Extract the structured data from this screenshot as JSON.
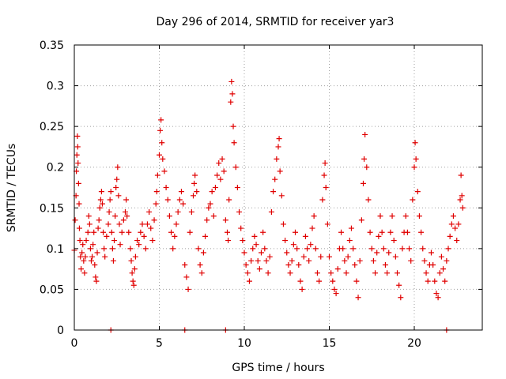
{
  "chart_data": {
    "type": "scatter",
    "title": "Day 296 of 2014, SRMTID for receiver yar3",
    "xlabel": "GPS time / hours",
    "ylabel": "SRMTID / TECUs",
    "xlim": [
      0,
      24
    ],
    "ylim": [
      0,
      0.35
    ],
    "x_ticks": [
      0,
      5,
      10,
      15,
      20
    ],
    "x_tick_labels": [
      "0",
      "5",
      "10",
      "15",
      "20"
    ],
    "y_ticks": [
      0,
      0.05,
      0.1,
      0.15,
      0.2,
      0.25,
      0.3,
      0.35
    ],
    "y_tick_labels": [
      "0",
      "0.05",
      "0.1",
      "0.15",
      "0.2",
      "0.25",
      "0.3",
      "0.35"
    ],
    "grid": true,
    "marker": "plus",
    "marker_color": "#e00000",
    "series": [
      {
        "name": "SRMTID",
        "points": [
          [
            0.0,
            0.098
          ],
          [
            0.05,
            0.135
          ],
          [
            0.1,
            0.165
          ],
          [
            0.12,
            0.195
          ],
          [
            0.15,
            0.215
          ],
          [
            0.18,
            0.238
          ],
          [
            0.2,
            0.225
          ],
          [
            0.22,
            0.205
          ],
          [
            0.25,
            0.18
          ],
          [
            0.28,
            0.155
          ],
          [
            0.3,
            0.125
          ],
          [
            0.33,
            0.11
          ],
          [
            0.36,
            0.09
          ],
          [
            0.4,
            0.075
          ],
          [
            0.45,
            0.095
          ],
          [
            0.5,
            0.105
          ],
          [
            0.55,
            0.085
          ],
          [
            0.6,
            0.07
          ],
          [
            0.65,
            0.09
          ],
          [
            0.7,
            0.11
          ],
          [
            0.8,
            0.12
          ],
          [
            0.85,
            0.14
          ],
          [
            0.9,
            0.13
          ],
          [
            0.95,
            0.1
          ],
          [
            1.0,
            0.085
          ],
          [
            1.05,
            0.09
          ],
          [
            1.1,
            0.105
          ],
          [
            1.15,
            0.12
          ],
          [
            1.2,
            0.08
          ],
          [
            1.25,
            0.065
          ],
          [
            1.3,
            0.06
          ],
          [
            1.35,
            0.095
          ],
          [
            1.4,
            0.125
          ],
          [
            1.45,
            0.135
          ],
          [
            1.5,
            0.15
          ],
          [
            1.55,
            0.16
          ],
          [
            1.6,
            0.17
          ],
          [
            1.65,
            0.155
          ],
          [
            1.7,
            0.12
          ],
          [
            1.75,
            0.1
          ],
          [
            1.8,
            0.09
          ],
          [
            1.9,
            0.115
          ],
          [
            2.0,
            0.13
          ],
          [
            2.05,
            0.145
          ],
          [
            2.1,
            0.16
          ],
          [
            2.15,
            0.17
          ],
          [
            2.2,
            0.12
          ],
          [
            2.25,
            0.1
          ],
          [
            2.3,
            0.085
          ],
          [
            2.35,
            0.11
          ],
          [
            2.4,
            0.14
          ],
          [
            2.45,
            0.175
          ],
          [
            2.5,
            0.185
          ],
          [
            2.55,
            0.2
          ],
          [
            2.6,
            0.165
          ],
          [
            2.65,
            0.13
          ],
          [
            2.7,
            0.105
          ],
          [
            2.8,
            0.12
          ],
          [
            2.9,
            0.135
          ],
          [
            3.0,
            0.145
          ],
          [
            3.05,
            0.16
          ],
          [
            3.1,
            0.14
          ],
          [
            3.2,
            0.12
          ],
          [
            3.3,
            0.1
          ],
          [
            3.35,
            0.085
          ],
          [
            3.4,
            0.07
          ],
          [
            3.45,
            0.06
          ],
          [
            3.5,
            0.055
          ],
          [
            3.55,
            0.075
          ],
          [
            3.6,
            0.09
          ],
          [
            3.7,
            0.11
          ],
          [
            3.8,
            0.105
          ],
          [
            3.9,
            0.12
          ],
          [
            4.0,
            0.13
          ],
          [
            4.1,
            0.115
          ],
          [
            4.2,
            0.1
          ],
          [
            4.3,
            0.13
          ],
          [
            4.4,
            0.145
          ],
          [
            4.5,
            0.125
          ],
          [
            4.6,
            0.11
          ],
          [
            4.7,
            0.135
          ],
          [
            4.8,
            0.155
          ],
          [
            4.85,
            0.17
          ],
          [
            4.9,
            0.19
          ],
          [
            5.0,
            0.215
          ],
          [
            5.05,
            0.245
          ],
          [
            5.1,
            0.258
          ],
          [
            5.15,
            0.23
          ],
          [
            5.2,
            0.21
          ],
          [
            5.3,
            0.195
          ],
          [
            5.4,
            0.175
          ],
          [
            5.5,
            0.16
          ],
          [
            5.6,
            0.14
          ],
          [
            5.7,
            0.12
          ],
          [
            5.8,
            0.1
          ],
          [
            5.9,
            0.115
          ],
          [
            6.0,
            0.13
          ],
          [
            6.1,
            0.145
          ],
          [
            6.2,
            0.16
          ],
          [
            6.3,
            0.17
          ],
          [
            6.4,
            0.155
          ],
          [
            6.5,
            0.08
          ],
          [
            6.6,
            0.065
          ],
          [
            6.7,
            0.05
          ],
          [
            6.8,
            0.12
          ],
          [
            6.9,
            0.145
          ],
          [
            7.0,
            0.165
          ],
          [
            7.05,
            0.18
          ],
          [
            7.1,
            0.19
          ],
          [
            7.2,
            0.17
          ],
          [
            7.3,
            0.1
          ],
          [
            7.4,
            0.08
          ],
          [
            7.5,
            0.07
          ],
          [
            7.6,
            0.095
          ],
          [
            7.7,
            0.115
          ],
          [
            7.8,
            0.135
          ],
          [
            7.9,
            0.15
          ],
          [
            8.0,
            0.155
          ],
          [
            8.1,
            0.17
          ],
          [
            8.2,
            0.14
          ],
          [
            8.3,
            0.175
          ],
          [
            8.4,
            0.19
          ],
          [
            8.5,
            0.205
          ],
          [
            8.6,
            0.185
          ],
          [
            8.7,
            0.21
          ],
          [
            8.8,
            0.195
          ],
          [
            8.9,
            0.135
          ],
          [
            9.0,
            0.12
          ],
          [
            9.05,
            0.11
          ],
          [
            9.1,
            0.16
          ],
          [
            9.2,
            0.28
          ],
          [
            9.25,
            0.305
          ],
          [
            9.3,
            0.29
          ],
          [
            9.35,
            0.25
          ],
          [
            9.4,
            0.23
          ],
          [
            9.5,
            0.2
          ],
          [
            9.6,
            0.175
          ],
          [
            9.7,
            0.145
          ],
          [
            9.8,
            0.125
          ],
          [
            9.9,
            0.11
          ],
          [
            10.0,
            0.095
          ],
          [
            10.1,
            0.08
          ],
          [
            10.2,
            0.07
          ],
          [
            10.3,
            0.06
          ],
          [
            10.4,
            0.085
          ],
          [
            10.5,
            0.1
          ],
          [
            10.6,
            0.115
          ],
          [
            10.7,
            0.105
          ],
          [
            10.8,
            0.085
          ],
          [
            10.9,
            0.075
          ],
          [
            11.0,
            0.095
          ],
          [
            11.1,
            0.12
          ],
          [
            11.2,
            0.1
          ],
          [
            11.3,
            0.085
          ],
          [
            11.4,
            0.07
          ],
          [
            11.5,
            0.09
          ],
          [
            11.6,
            0.145
          ],
          [
            11.7,
            0.17
          ],
          [
            11.8,
            0.185
          ],
          [
            11.9,
            0.21
          ],
          [
            12.0,
            0.225
          ],
          [
            12.05,
            0.235
          ],
          [
            12.1,
            0.195
          ],
          [
            12.2,
            0.165
          ],
          [
            12.3,
            0.13
          ],
          [
            12.4,
            0.11
          ],
          [
            12.5,
            0.095
          ],
          [
            12.6,
            0.08
          ],
          [
            12.7,
            0.07
          ],
          [
            12.8,
            0.085
          ],
          [
            12.9,
            0.105
          ],
          [
            13.0,
            0.12
          ],
          [
            13.1,
            0.1
          ],
          [
            13.2,
            0.08
          ],
          [
            13.3,
            0.06
          ],
          [
            13.4,
            0.05
          ],
          [
            13.5,
            0.09
          ],
          [
            13.6,
            0.115
          ],
          [
            13.7,
            0.1
          ],
          [
            13.8,
            0.085
          ],
          [
            13.9,
            0.105
          ],
          [
            14.0,
            0.125
          ],
          [
            14.1,
            0.14
          ],
          [
            14.2,
            0.1
          ],
          [
            14.3,
            0.07
          ],
          [
            14.4,
            0.06
          ],
          [
            14.5,
            0.09
          ],
          [
            14.6,
            0.16
          ],
          [
            14.7,
            0.19
          ],
          [
            14.75,
            0.205
          ],
          [
            14.8,
            0.175
          ],
          [
            14.9,
            0.13
          ],
          [
            15.0,
            0.09
          ],
          [
            15.1,
            0.07
          ],
          [
            15.2,
            0.06
          ],
          [
            15.3,
            0.05
          ],
          [
            15.4,
            0.045
          ],
          [
            15.5,
            0.075
          ],
          [
            15.6,
            0.1
          ],
          [
            15.7,
            0.12
          ],
          [
            15.8,
            0.1
          ],
          [
            15.9,
            0.085
          ],
          [
            16.0,
            0.07
          ],
          [
            16.1,
            0.09
          ],
          [
            16.2,
            0.11
          ],
          [
            16.3,
            0.125
          ],
          [
            16.4,
            0.1
          ],
          [
            16.5,
            0.08
          ],
          [
            16.6,
            0.06
          ],
          [
            16.7,
            0.04
          ],
          [
            16.8,
            0.085
          ],
          [
            16.9,
            0.135
          ],
          [
            17.0,
            0.18
          ],
          [
            17.05,
            0.21
          ],
          [
            17.1,
            0.24
          ],
          [
            17.2,
            0.2
          ],
          [
            17.3,
            0.16
          ],
          [
            17.4,
            0.12
          ],
          [
            17.5,
            0.1
          ],
          [
            17.6,
            0.085
          ],
          [
            17.7,
            0.07
          ],
          [
            17.8,
            0.095
          ],
          [
            17.9,
            0.115
          ],
          [
            18.0,
            0.14
          ],
          [
            18.1,
            0.12
          ],
          [
            18.2,
            0.1
          ],
          [
            18.3,
            0.08
          ],
          [
            18.4,
            0.07
          ],
          [
            18.5,
            0.095
          ],
          [
            18.6,
            0.12
          ],
          [
            18.7,
            0.14
          ],
          [
            18.8,
            0.11
          ],
          [
            18.9,
            0.09
          ],
          [
            19.0,
            0.07
          ],
          [
            19.1,
            0.055
          ],
          [
            19.2,
            0.04
          ],
          [
            19.3,
            0.1
          ],
          [
            19.4,
            0.12
          ],
          [
            19.5,
            0.14
          ],
          [
            19.6,
            0.12
          ],
          [
            19.7,
            0.1
          ],
          [
            19.8,
            0.085
          ],
          [
            19.9,
            0.16
          ],
          [
            20.0,
            0.2
          ],
          [
            20.05,
            0.23
          ],
          [
            20.1,
            0.21
          ],
          [
            20.2,
            0.17
          ],
          [
            20.3,
            0.14
          ],
          [
            20.4,
            0.12
          ],
          [
            20.5,
            0.1
          ],
          [
            20.6,
            0.085
          ],
          [
            20.7,
            0.07
          ],
          [
            20.8,
            0.06
          ],
          [
            20.9,
            0.08
          ],
          [
            21.0,
            0.095
          ],
          [
            21.1,
            0.08
          ],
          [
            21.2,
            0.06
          ],
          [
            21.3,
            0.045
          ],
          [
            21.4,
            0.04
          ],
          [
            21.5,
            0.07
          ],
          [
            21.6,
            0.09
          ],
          [
            21.7,
            0.075
          ],
          [
            21.8,
            0.06
          ],
          [
            21.9,
            0.085
          ],
          [
            22.0,
            0.1
          ],
          [
            22.1,
            0.115
          ],
          [
            22.2,
            0.13
          ],
          [
            22.3,
            0.14
          ],
          [
            22.4,
            0.125
          ],
          [
            22.5,
            0.11
          ],
          [
            22.6,
            0.13
          ],
          [
            22.7,
            0.16
          ],
          [
            22.75,
            0.19
          ],
          [
            22.8,
            0.165
          ],
          [
            22.85,
            0.15
          ]
        ]
      },
      {
        "name": "zero-markers",
        "points": [
          [
            2.15,
            0.0
          ],
          [
            6.5,
            0.0
          ],
          [
            8.9,
            0.0
          ],
          [
            21.9,
            0.0
          ]
        ]
      }
    ]
  }
}
